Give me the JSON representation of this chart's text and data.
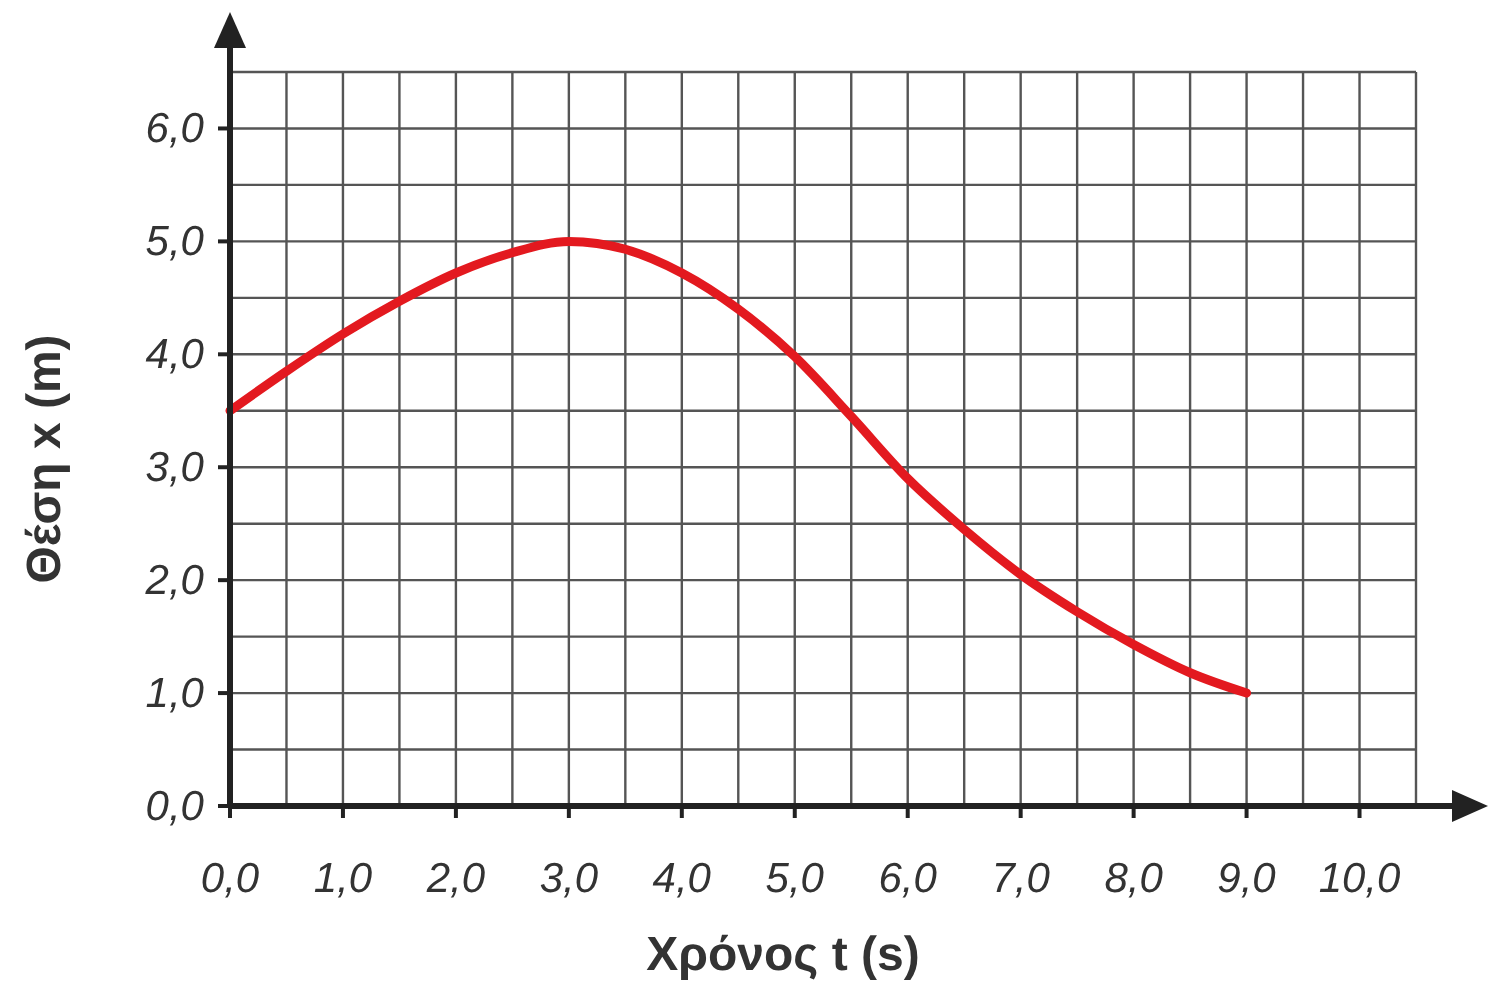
{
  "chart_data": {
    "type": "line",
    "xlabel": "Χρόνος t (s)",
    "ylabel": "Θέση x (m)",
    "xlim": [
      0,
      10.5
    ],
    "ylim": [
      0,
      6.5
    ],
    "xticks": [
      {
        "value": 0,
        "label": "0,0"
      },
      {
        "value": 1,
        "label": "1,0"
      },
      {
        "value": 2,
        "label": "2,0"
      },
      {
        "value": 3,
        "label": "3,0"
      },
      {
        "value": 4,
        "label": "4,0"
      },
      {
        "value": 5,
        "label": "5,0"
      },
      {
        "value": 6,
        "label": "6,0"
      },
      {
        "value": 7,
        "label": "7,0"
      },
      {
        "value": 8,
        "label": "8,0"
      },
      {
        "value": 9,
        "label": "9,0"
      },
      {
        "value": 10,
        "label": "10,0"
      }
    ],
    "yticks": [
      {
        "value": 0,
        "label": "0,0"
      },
      {
        "value": 1,
        "label": "1,0"
      },
      {
        "value": 2,
        "label": "2,0"
      },
      {
        "value": 3,
        "label": "3,0"
      },
      {
        "value": 4,
        "label": "4,0"
      },
      {
        "value": 5,
        "label": "5,0"
      },
      {
        "value": 6,
        "label": "6,0"
      }
    ],
    "grid": true,
    "marker": "none",
    "line_style": "solid",
    "series": [
      {
        "color": "#e3191f",
        "x": [
          0,
          0.5,
          1,
          1.5,
          2,
          2.5,
          3,
          3.5,
          4,
          4.5,
          5,
          5.5,
          6,
          6.5,
          7,
          7.5,
          8,
          8.5,
          9
        ],
        "values": [
          3.5,
          3.85,
          4.18,
          4.47,
          4.72,
          4.9,
          5.0,
          4.93,
          4.72,
          4.4,
          3.98,
          3.45,
          2.9,
          2.45,
          2.05,
          1.72,
          1.43,
          1.18,
          1.0
        ]
      }
    ]
  }
}
